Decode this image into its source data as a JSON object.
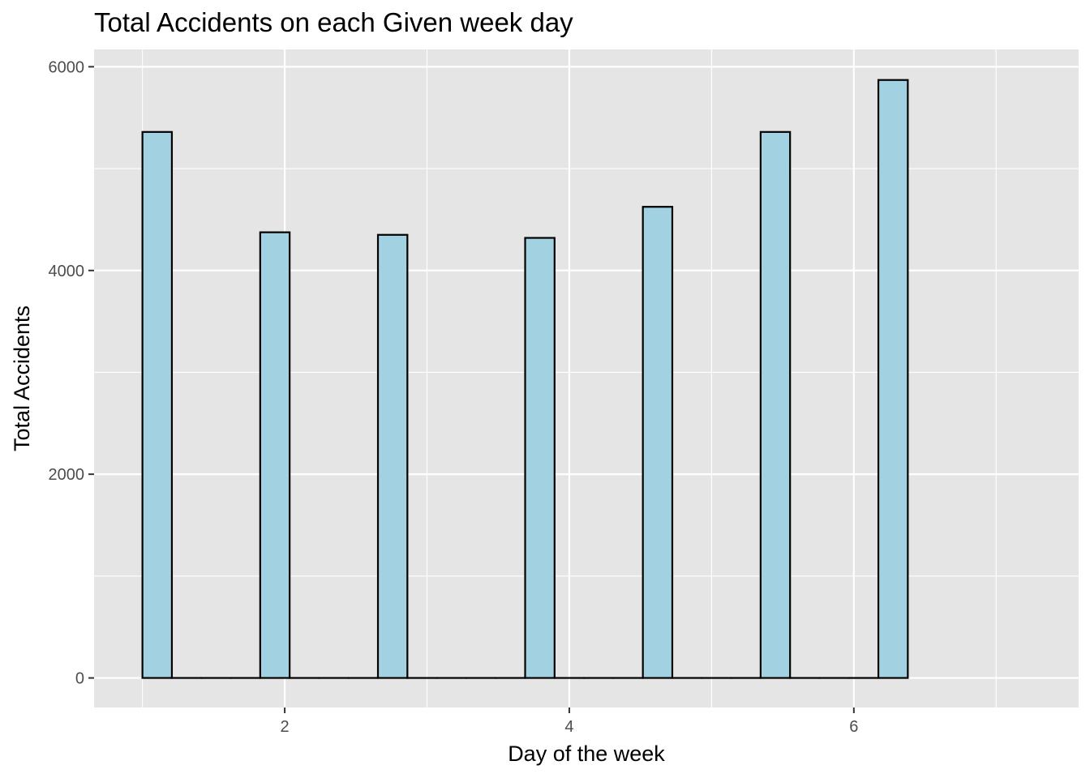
{
  "chart_data": {
    "type": "bar",
    "title": "Total Accidents on each Given week day",
    "xlabel": "Day of the week",
    "ylabel": "Total Accidents",
    "x_ticks": [
      2,
      4,
      6
    ],
    "y_ticks": [
      0,
      2000,
      4000,
      6000
    ],
    "xlim": [
      0.66,
      7.58
    ],
    "ylim": [
      -290,
      6170
    ],
    "grid": true,
    "bins": [
      {
        "x0": 1.0,
        "x1": 1.2069,
        "value": 5360
      },
      {
        "x0": 1.2069,
        "x1": 1.4138,
        "value": 0
      },
      {
        "x0": 1.4138,
        "x1": 1.6207,
        "value": 0
      },
      {
        "x0": 1.6207,
        "x1": 1.8276,
        "value": 0
      },
      {
        "x0": 1.8276,
        "x1": 2.0345,
        "value": 4375
      },
      {
        "x0": 2.0345,
        "x1": 2.2414,
        "value": 0
      },
      {
        "x0": 2.2414,
        "x1": 2.4483,
        "value": 0
      },
      {
        "x0": 2.4483,
        "x1": 2.6552,
        "value": 0
      },
      {
        "x0": 2.6552,
        "x1": 2.8621,
        "value": 4350
      },
      {
        "x0": 2.8621,
        "x1": 3.069,
        "value": 0
      },
      {
        "x0": 3.069,
        "x1": 3.2759,
        "value": 0
      },
      {
        "x0": 3.2759,
        "x1": 3.4828,
        "value": 0
      },
      {
        "x0": 3.4828,
        "x1": 3.6897,
        "value": 0
      },
      {
        "x0": 3.6897,
        "x1": 3.8966,
        "value": 4320
      },
      {
        "x0": 3.8966,
        "x1": 4.1034,
        "value": 0
      },
      {
        "x0": 4.1034,
        "x1": 4.3103,
        "value": 0
      },
      {
        "x0": 4.3103,
        "x1": 4.5172,
        "value": 0
      },
      {
        "x0": 4.5172,
        "x1": 4.7241,
        "value": 4625
      },
      {
        "x0": 4.7241,
        "x1": 4.931,
        "value": 0
      },
      {
        "x0": 4.931,
        "x1": 5.1379,
        "value": 0
      },
      {
        "x0": 5.1379,
        "x1": 5.3448,
        "value": 0
      },
      {
        "x0": 5.3448,
        "x1": 5.5517,
        "value": 5360
      },
      {
        "x0": 5.5517,
        "x1": 5.7586,
        "value": 0
      },
      {
        "x0": 5.7586,
        "x1": 5.9655,
        "value": 0
      },
      {
        "x0": 5.9655,
        "x1": 6.1724,
        "value": 0
      },
      {
        "x0": 6.1724,
        "x1": 6.3793,
        "value": 5870
      }
    ]
  },
  "colors": {
    "panel_background": "#e5e5e5",
    "grid_major": "#ffffff",
    "bar_fill": "#a2d1e1",
    "bar_stroke": "#000000",
    "tick_text": "#4d4d4d",
    "tick_mark": "#333333"
  }
}
